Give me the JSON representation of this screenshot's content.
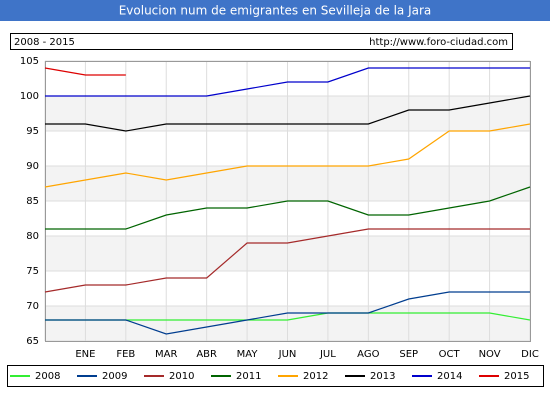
{
  "chart_data": {
    "type": "line",
    "title": "Evolucion num de emigrantes en Sevilleja de la Jara",
    "subtitle": "2008 - 2015",
    "source": "http://www.foro-ciudad.com",
    "categories": [
      null,
      "ENE",
      "FEB",
      "MAR",
      "ABR",
      "MAY",
      "JUN",
      "JUL",
      "AGO",
      "SEP",
      "OCT",
      "NOV",
      "DIC"
    ],
    "ylim": [
      65,
      105
    ],
    "yticks": [
      65,
      70,
      75,
      80,
      85,
      90,
      95,
      100,
      105
    ],
    "grid": true,
    "series": [
      {
        "name": "2008",
        "color": "#33ee33",
        "values": [
          68,
          68,
          68,
          68,
          68,
          68,
          68,
          69,
          69,
          69,
          69,
          69,
          68
        ]
      },
      {
        "name": "2009",
        "color": "#003d8f",
        "values": [
          68,
          68,
          68,
          66,
          67,
          68,
          69,
          69,
          69,
          71,
          72,
          72,
          72
        ]
      },
      {
        "name": "2010",
        "color": "#a52a2a",
        "values": [
          72,
          73,
          73,
          74,
          74,
          79,
          79,
          80,
          81,
          81,
          81,
          81,
          81
        ]
      },
      {
        "name": "2011",
        "color": "#006400",
        "values": [
          81,
          81,
          81,
          83,
          84,
          84,
          85,
          85,
          83,
          83,
          84,
          85,
          87
        ]
      },
      {
        "name": "2012",
        "color": "#ffa500",
        "values": [
          87,
          88,
          89,
          88,
          89,
          90,
          90,
          90,
          90,
          91,
          95,
          95,
          96
        ]
      },
      {
        "name": "2013",
        "color": "#000000",
        "values": [
          96,
          96,
          95,
          96,
          96,
          96,
          96,
          96,
          96,
          98,
          98,
          99,
          100
        ]
      },
      {
        "name": "2014",
        "color": "#0000cc",
        "values": [
          100,
          100,
          100,
          100,
          100,
          101,
          102,
          102,
          104,
          104,
          104,
          104,
          104
        ]
      },
      {
        "name": "2015",
        "color": "#dd0000",
        "values": [
          104,
          103,
          103,
          null,
          null,
          null,
          null,
          null,
          null,
          null,
          null,
          null,
          null
        ]
      }
    ]
  }
}
